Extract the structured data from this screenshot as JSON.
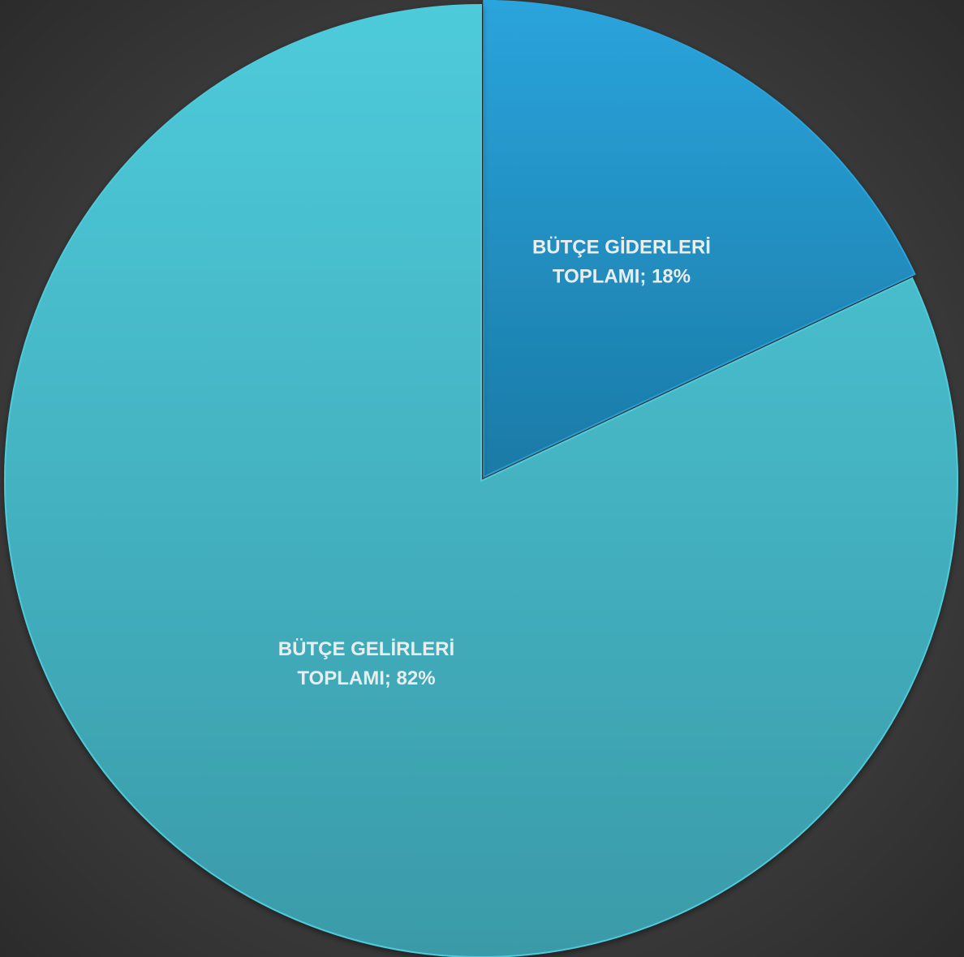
{
  "chart_data": {
    "type": "pie",
    "title": "",
    "slices": [
      {
        "name": "BÜTÇE GİDERLERİ TOPLAMI",
        "value": 18,
        "label_line1": "BÜTÇE GİDERLERİ",
        "label_line2": "TOPLAMI; 18%",
        "color": "#2391c2",
        "color_light": "#2aa4dc",
        "color_dark": "#1a7aa6"
      },
      {
        "name": "BÜTÇE GELİRLERİ TOPLAMI",
        "value": 82,
        "label_line1": "BÜTÇE GELİRLERİ",
        "label_line2": "TOPLAMI; 82%",
        "color": "#46b5c5",
        "color_light": "#4ecbdb",
        "color_dark": "#3a9aa8"
      }
    ],
    "start_angle_deg": 0,
    "legend": "none",
    "background": "#3f3f3f"
  }
}
